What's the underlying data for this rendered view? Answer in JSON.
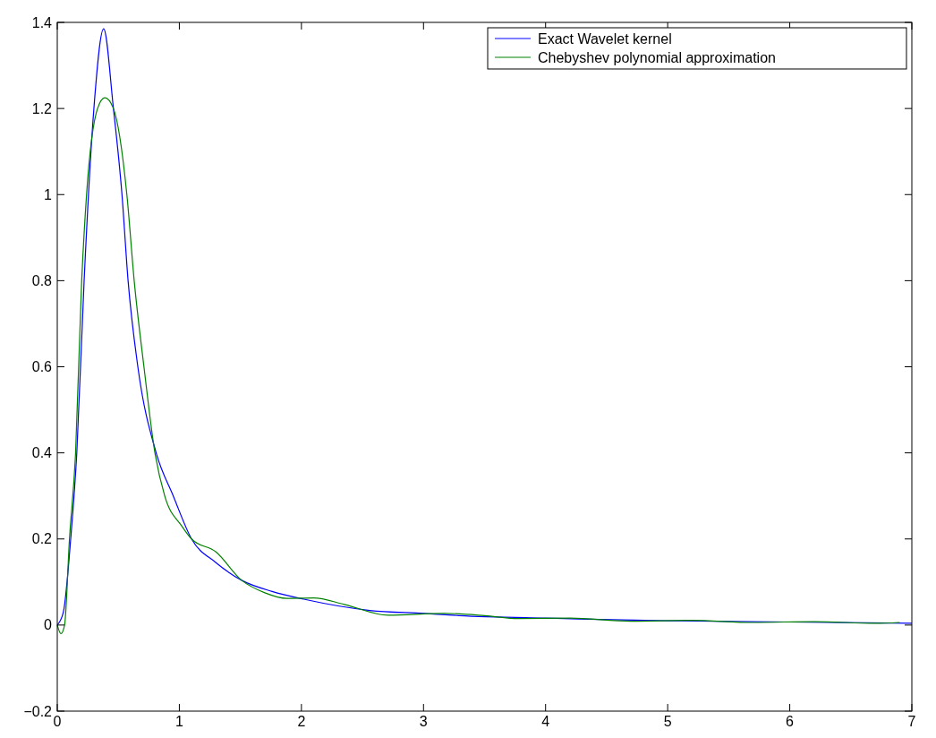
{
  "chart_data": {
    "type": "line",
    "xlim": [
      0,
      7
    ],
    "ylim": [
      -0.2,
      1.4
    ],
    "xticks": [
      0,
      1,
      2,
      3,
      4,
      5,
      6,
      7
    ],
    "yticks": [
      -0.2,
      0,
      0.2,
      0.4,
      0.6,
      0.8,
      1,
      1.2,
      1.4
    ],
    "grid": false,
    "legend": "top right",
    "line_style": "solid",
    "marker": "none",
    "series": [
      {
        "name": "Exact Wavelet kernel",
        "color": "#0000ff",
        "x": [
          0,
          0.05,
          0.11,
          0.16,
          0.22,
          0.3,
          0.38,
          0.46,
          0.53,
          0.58,
          0.66,
          0.81,
          0.95,
          1.1,
          1.3,
          1.51,
          1.76,
          2.02,
          2.56,
          3.0,
          3.29,
          4.0,
          4.15,
          5.0,
          6.0,
          7.0
        ],
        "values": [
          0,
          0.03,
          0.2,
          0.4,
          0.8,
          1.2,
          1.385,
          1.2,
          1.0,
          0.8,
          0.6,
          0.4,
          0.3,
          0.2,
          0.145,
          0.104,
          0.078,
          0.06,
          0.034,
          0.027,
          0.022,
          0.016,
          0.015,
          0.01,
          0.007,
          0.004
        ]
      },
      {
        "name": "Chebyshev polynomial approximation",
        "color": "#008000",
        "x": [
          0,
          0.03,
          0.06,
          0.1,
          0.15,
          0.2,
          0.24,
          0.33,
          0.39,
          0.46,
          0.57,
          0.63,
          0.71,
          0.8,
          0.88,
          1.02,
          1.1,
          1.3,
          1.51,
          1.7,
          1.88,
          2.1,
          2.35,
          2.71,
          3.17,
          3.5,
          3.78,
          4.2,
          4.7,
          5.2,
          5.7,
          6.2,
          6.7,
          6.9
        ],
        "values": [
          0,
          -0.02,
          0,
          0.2,
          0.4,
          0.8,
          1.0,
          1.2,
          1.225,
          1.2,
          1.0,
          0.8,
          0.6,
          0.4,
          0.3,
          0.23,
          0.2,
          0.17,
          0.104,
          0.075,
          0.062,
          0.063,
          0.048,
          0.023,
          0.027,
          0.022,
          0.015,
          0.016,
          0.009,
          0.011,
          0.006,
          0.008,
          0.004,
          0.006
        ]
      }
    ]
  }
}
